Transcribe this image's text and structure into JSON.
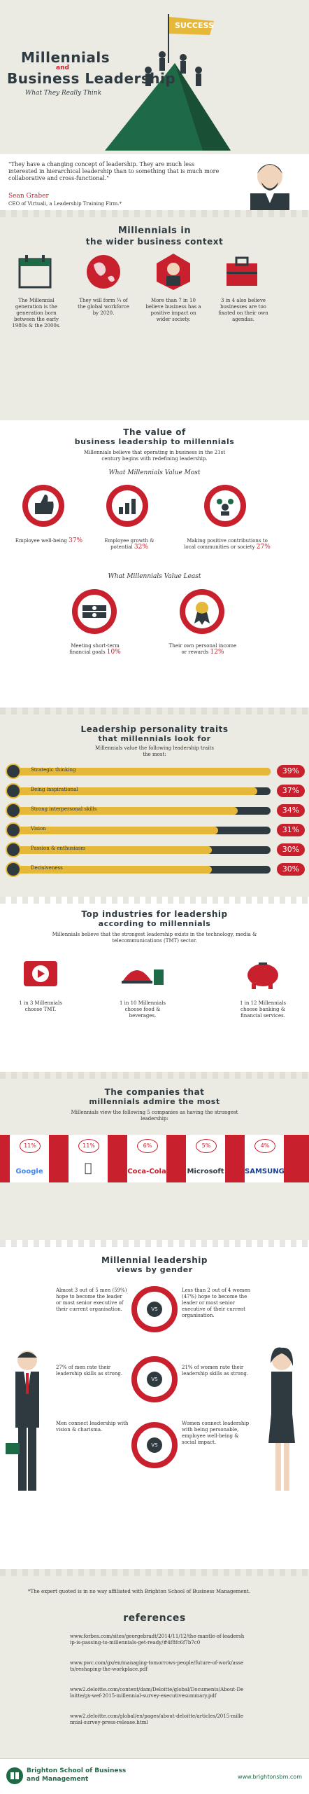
{
  "hero": {
    "title_line1": "Millennials",
    "title_and": "and",
    "title_line2": "Business Leadership",
    "subtitle": "What They Really Think",
    "flag_text": "SUCCESS"
  },
  "quote": {
    "text": "\"They have a changing concept of leadership. They are much less interested in hierarchical leadership than to something that is much more collaborative and cross-functional.\"",
    "name": "Sean Graber",
    "role": "CEO of Virtuali, a Leadership Training Firm.*"
  },
  "context": {
    "title_line1": "Millennials in",
    "title_line2": "the wider business context",
    "items": [
      {
        "text": "The Millennial generation is the generation born between the early 1980s & the 2000s."
      },
      {
        "text": "They will form ¾ of the global workforce by 2020."
      },
      {
        "text": "More than 7 in 10 believe business has a positive impact on wider society."
      },
      {
        "text": "3 in 4 also believe businesses are too fixated on their own agendas."
      }
    ]
  },
  "value": {
    "title_line1": "The value of",
    "title_line2": "business leadership to millennials",
    "intro": "Millennials believe that operating in business in the 21st century begins with redefining leadership.",
    "most_title": "What Millennials Value Most",
    "most": [
      {
        "label": "Employee well-being",
        "pct": "37%"
      },
      {
        "label": "Employee growth & potential",
        "pct": "32%"
      },
      {
        "label": "Making positive contributions to local communities or society",
        "pct": "27%"
      }
    ],
    "least_title": "What Millennials Value Least",
    "least": [
      {
        "label": "Meeting short-term financial goals",
        "pct": "10%"
      },
      {
        "label": "Their own personal income or rewards",
        "pct": "12%"
      }
    ]
  },
  "traits": {
    "title_line1": "Leadership personality traits",
    "title_line2": "that millennials look for",
    "intro": "Millennials value the following leadership traits the most:",
    "items": [
      {
        "label": "Strategic thinking",
        "pct": "39%",
        "value": 39
      },
      {
        "label": "Being inspirational",
        "pct": "37%",
        "value": 37
      },
      {
        "label": "Strong interpersonal skills",
        "pct": "34%",
        "value": 34
      },
      {
        "label": "Vision",
        "pct": "31%",
        "value": 31
      },
      {
        "label": "Passion & enthusiasm",
        "pct": "30%",
        "value": 30
      },
      {
        "label": "Decisiveness",
        "pct": "30%",
        "value": 30
      }
    ]
  },
  "industries": {
    "title_line1": "Top industries for leadership",
    "title_line2": "according to millennials",
    "intro": "Millennials believe that the strongest leadership exists in the technology, media & telecommunications (TMT) sector.",
    "items": [
      {
        "text": "1 in 3 Millennials choose TMT."
      },
      {
        "text": "1 in 10 Millennials choose food & beverages."
      },
      {
        "text": "1 in 12 Millennials choose banking & financial services."
      }
    ]
  },
  "companies": {
    "title_line1": "The companies that",
    "title_line2": "millennials admire the most",
    "intro": "Millennials view the following 5 companies as having the strongest leadership:",
    "items": [
      {
        "pct": "11%",
        "name": "Google"
      },
      {
        "pct": "11%",
        "name": ""
      },
      {
        "pct": "6%",
        "name": "Coca-Cola"
      },
      {
        "pct": "5%",
        "name": "Microsoft"
      },
      {
        "pct": "4%",
        "name": "SAMSUNG"
      }
    ]
  },
  "gender": {
    "title_line1": "Millennial leadership",
    "title_line2": "views by gender",
    "vs": "VS",
    "men": [
      "Almost 3 out of 5 men (59%) hope to become the leader or most senior executive of their current organisation.",
      "27% of men rate their leadership skills as strong.",
      "Men connect leadership with vision & charisma."
    ],
    "women": [
      "Less than 2 out of 4 women (47%) hope to become the leader or most senior executive of their current organisation.",
      "21% of women rate their leadership skills as strong.",
      "Women connect leadership with being personable, employee well-being & social impact."
    ]
  },
  "footer": {
    "disclaimer": "*The expert quoted is in no way affiliated with Brighton School of Business Management.",
    "ref_title": "references",
    "refs": [
      "www.forbes.com/sites/georgebradt/2014/11/12/the-mantle-of-leadership-is-passing-to-millennials-get-ready/#4f8fc6f7b7c0",
      "www.pwc.com/gx/en/managing-tomorrows-people/future-of-work/assets/reshaping-the-workplace.pdf",
      "www2.deloitte.com/content/dam/Deloitte/global/Documents/About-Deloitte/gx-wef-2015-millennial-survey-executivesummary.pdf",
      "www2.deloitte.com/global/en/pages/about-deloitte/articles/2015-millennial-survey-press-release.html"
    ],
    "school_line1": "Brighton School of Business",
    "school_line2": "and Management",
    "website": "www.brightonsbm.com"
  },
  "colors": {
    "accent": "#c8202d",
    "dark": "#2f3a40",
    "gold": "#e6b83a",
    "bg": "#ecebe3"
  }
}
